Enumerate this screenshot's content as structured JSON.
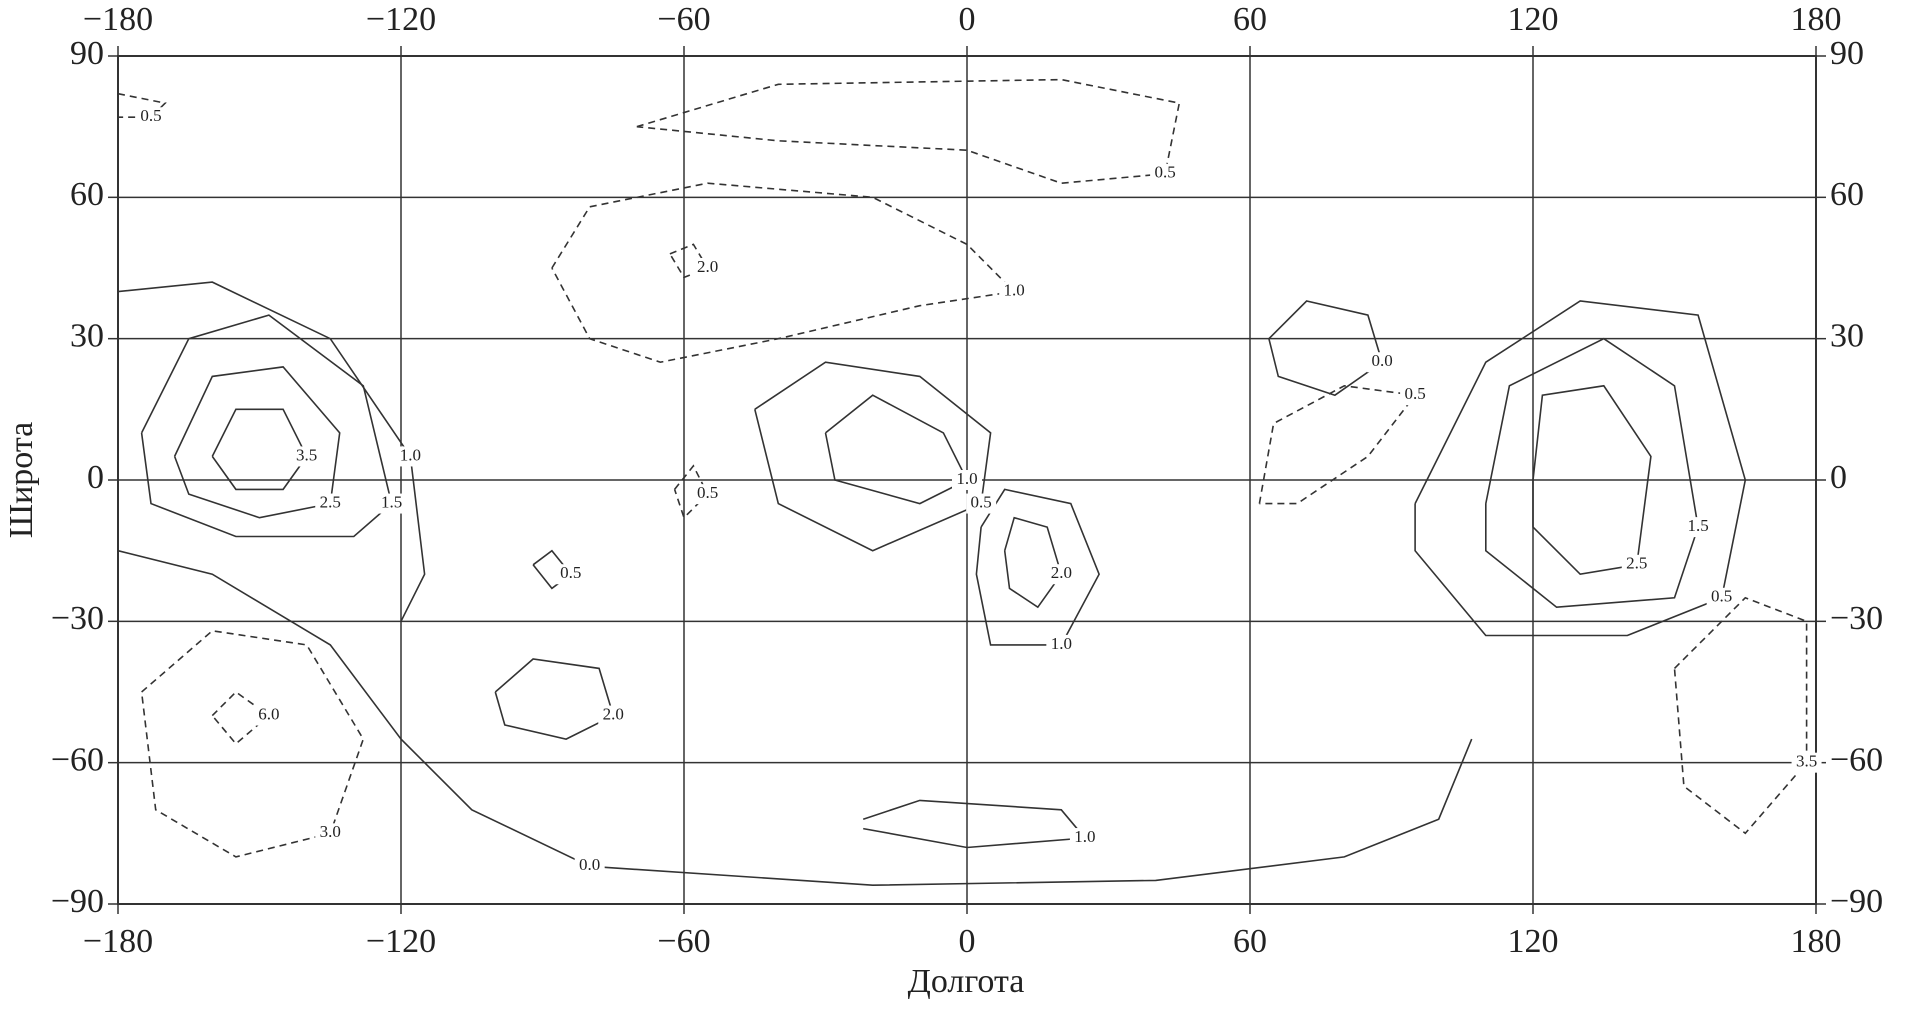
{
  "chart_data": {
    "type": "contour",
    "xlabel": "Долгота",
    "ylabel": "Широта",
    "xlim": [
      -180,
      180
    ],
    "ylim": [
      -90,
      90
    ],
    "xticks": [
      {
        "value": -180,
        "label": "−180"
      },
      {
        "value": -120,
        "label": "−120"
      },
      {
        "value": -60,
        "label": "−60"
      },
      0,
      60,
      120,
      180
    ],
    "yticks": [
      {
        "value": -90,
        "label": "−90"
      },
      {
        "value": -60,
        "label": "−60"
      },
      {
        "value": -30,
        "label": "−30"
      },
      0,
      30,
      60,
      90
    ],
    "grid": true,
    "color": "#333333",
    "contours": [
      {
        "label": "3.5",
        "style": "solid",
        "x": [
          -160,
          -155,
          -145,
          -140,
          -145,
          -155,
          -160
        ],
        "y": [
          5,
          15,
          15,
          5,
          -2,
          -2,
          5
        ]
      },
      {
        "label": "2.5",
        "style": "solid",
        "x": [
          -168,
          -160,
          -145,
          -133,
          -135,
          -150,
          -165,
          -168
        ],
        "y": [
          5,
          22,
          24,
          10,
          -5,
          -8,
          -3,
          5
        ]
      },
      {
        "label": "1.5",
        "style": "solid",
        "x": [
          -175,
          -165,
          -148,
          -128,
          -122,
          -130,
          -155,
          -173,
          -175
        ],
        "y": [
          10,
          30,
          35,
          20,
          -5,
          -12,
          -12,
          -5,
          10
        ]
      },
      {
        "label": "1.0",
        "style": "solid",
        "x": [
          -180,
          -160,
          -135,
          -118,
          -115,
          -120
        ],
        "y": [
          40,
          42,
          30,
          5,
          -20,
          -30
        ]
      },
      {
        "label": "0.0",
        "style": "solid",
        "x": [
          -180,
          -160,
          -135,
          -120,
          -105,
          -80,
          -20,
          40,
          80,
          100,
          107
        ],
        "y": [
          -15,
          -20,
          -35,
          -55,
          -70,
          -82,
          -86,
          -85,
          -80,
          -72,
          -55
        ]
      },
      {
        "label": "2.5",
        "style": "solid",
        "x": [
          120,
          122,
          135,
          145,
          142,
          130,
          120,
          120
        ],
        "y": [
          0,
          18,
          20,
          5,
          -18,
          -20,
          -10,
          0
        ]
      },
      {
        "label": "1.5",
        "style": "solid",
        "x": [
          110,
          115,
          135,
          150,
          155,
          150,
          125,
          110,
          110
        ],
        "y": [
          -5,
          20,
          30,
          20,
          -10,
          -25,
          -27,
          -15,
          -5
        ]
      },
      {
        "label": "0.5",
        "style": "solid",
        "x": [
          95,
          110,
          130,
          155,
          165,
          160,
          140,
          110,
          95,
          95
        ],
        "y": [
          -5,
          25,
          38,
          35,
          0,
          -25,
          -33,
          -33,
          -15,
          -5
        ]
      },
      {
        "label": "2.0",
        "style": "solid",
        "x": [
          8,
          10,
          17,
          20,
          15,
          9,
          8
        ],
        "y": [
          -15,
          -8,
          -10,
          -20,
          -27,
          -23,
          -15
        ]
      },
      {
        "label": "1.0",
        "style": "solid",
        "x": [
          3,
          8,
          22,
          28,
          20,
          5,
          2,
          3
        ],
        "y": [
          -10,
          -2,
          -5,
          -20,
          -35,
          -35,
          -20,
          -10
        ]
      },
      {
        "label": "1.0",
        "style": "solid",
        "x": [
          -30,
          -20,
          -5,
          0,
          -10,
          -28,
          -30
        ],
        "y": [
          10,
          18,
          10,
          0,
          -5,
          0,
          10
        ]
      },
      {
        "label": "0.5",
        "style": "solid",
        "x": [
          -45,
          -30,
          -10,
          5,
          3,
          -20,
          -40,
          -45
        ],
        "y": [
          15,
          25,
          22,
          10,
          -5,
          -15,
          -5,
          15
        ]
      },
      {
        "label": "2.0",
        "style": "solid",
        "x": [
          -100,
          -92,
          -78,
          -75,
          -85,
          -98,
          -100
        ],
        "y": [
          -45,
          -38,
          -40,
          -50,
          -55,
          -52,
          -45
        ]
      },
      {
        "label": "0.5",
        "style": "solid",
        "x": [
          -92,
          -88,
          -84,
          -88,
          -92
        ],
        "y": [
          -18,
          -15,
          -20,
          -23,
          -18
        ]
      },
      {
        "label": "1.0",
        "style": "solid",
        "x": [
          -22,
          -10,
          20,
          25,
          0,
          -22
        ],
        "y": [
          -72,
          -68,
          -70,
          -76,
          -78,
          -74
        ]
      },
      {
        "label": "0.0",
        "style": "solid",
        "x": [
          64,
          72,
          85,
          88,
          78,
          66,
          64
        ],
        "y": [
          30,
          38,
          35,
          25,
          18,
          22,
          30
        ]
      },
      {
        "label": "1.0",
        "style": "dashed",
        "x": [
          -88,
          -80,
          -55,
          -20,
          0,
          10,
          -10,
          -40,
          -65,
          -80,
          -88
        ],
        "y": [
          45,
          58,
          63,
          60,
          50,
          40,
          37,
          30,
          25,
          30,
          45
        ]
      },
      {
        "label": "2.0",
        "style": "dashed",
        "x": [
          -63,
          -58,
          -55,
          -60,
          -63
        ],
        "y": [
          48,
          50,
          45,
          43,
          48
        ]
      },
      {
        "label": "0.5",
        "style": "dashed",
        "x": [
          -70,
          -40,
          20,
          45,
          42,
          20,
          0,
          -40,
          -70
        ],
        "y": [
          75,
          84,
          85,
          80,
          65,
          63,
          70,
          72,
          75
        ]
      },
      {
        "label": "6.0",
        "style": "dashed",
        "x": [
          -160,
          -155,
          -148,
          -155,
          -160
        ],
        "y": [
          -50,
          -45,
          -50,
          -56,
          -50
        ]
      },
      {
        "label": "3.0",
        "style": "dashed",
        "x": [
          -175,
          -160,
          -140,
          -128,
          -135,
          -155,
          -172,
          -175
        ],
        "y": [
          -45,
          -32,
          -35,
          -55,
          -75,
          -80,
          -70,
          -45
        ]
      },
      {
        "label": "3.5",
        "style": "dashed",
        "x": [
          150,
          165,
          178,
          178,
          165,
          152,
          150
        ],
        "y": [
          -40,
          -25,
          -30,
          -60,
          -75,
          -65,
          -40
        ]
      },
      {
        "label": "0.5",
        "style": "dashed",
        "x": [
          62,
          65,
          80,
          95,
          85,
          70,
          62
        ],
        "y": [
          -5,
          12,
          20,
          18,
          5,
          -5,
          -5
        ]
      },
      {
        "label": "0.5",
        "style": "dashed",
        "x": [
          -62,
          -58,
          -55,
          -60,
          -62
        ],
        "y": [
          -2,
          3,
          -3,
          -8,
          -2
        ]
      },
      {
        "label": "0.5",
        "style": "dashed",
        "x": [
          -180,
          -170,
          -173,
          -180
        ],
        "y": [
          82,
          80,
          77,
          77
        ]
      }
    ]
  }
}
